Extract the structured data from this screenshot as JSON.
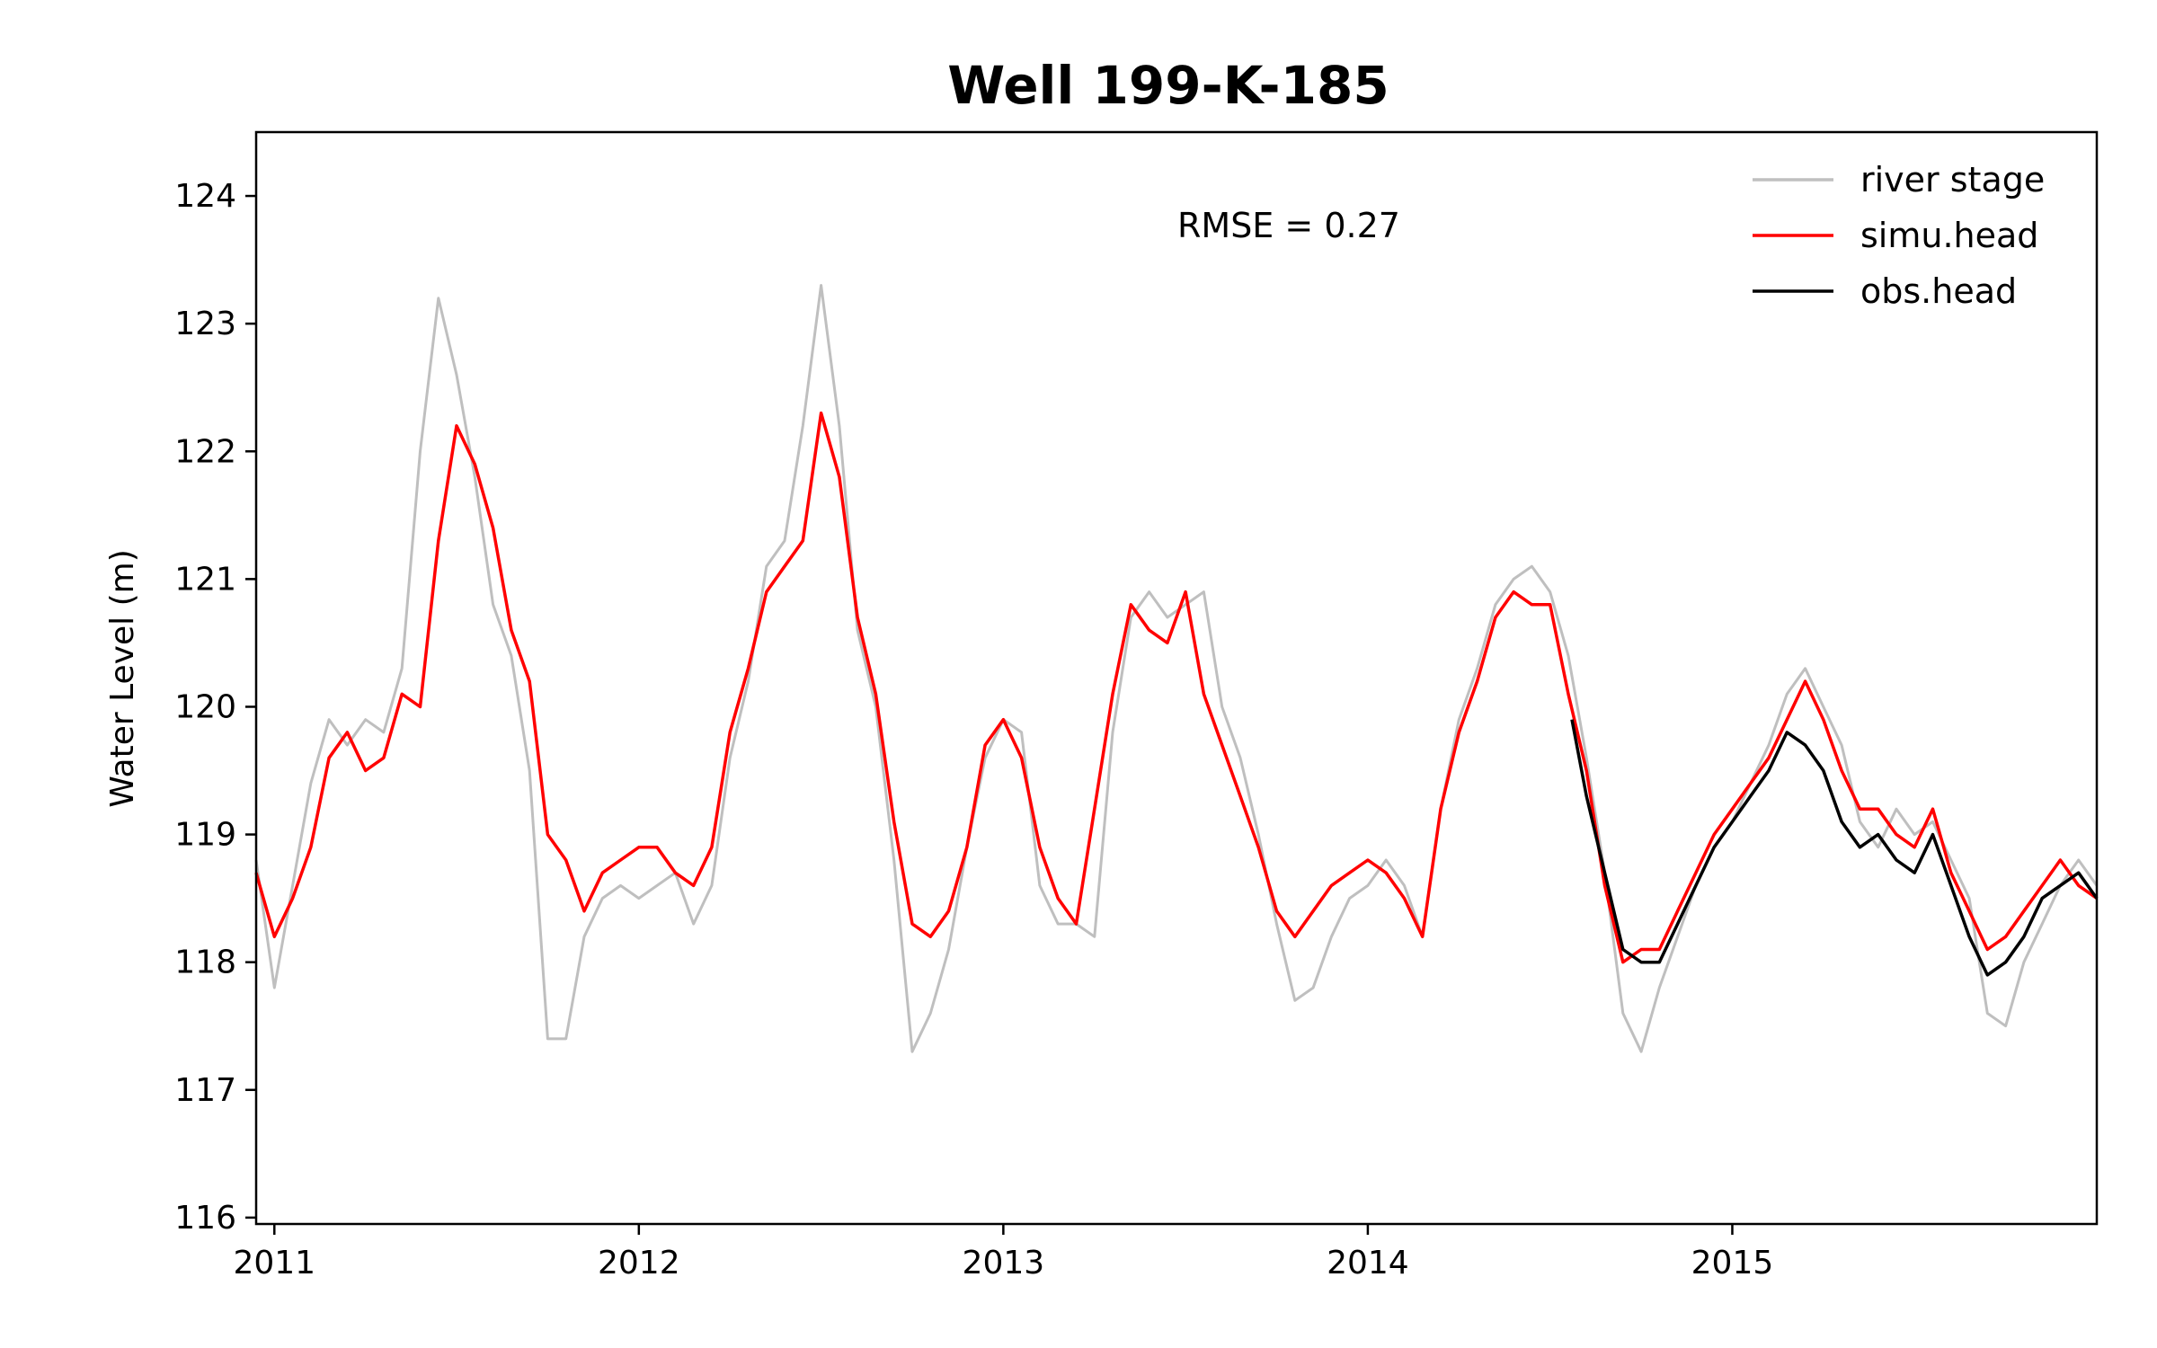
{
  "chart_data": {
    "type": "line",
    "title": "Well 199-K-185",
    "xlabel": "",
    "ylabel": "Water Level (m)",
    "annotation": "RMSE = 0.27",
    "xlim": [
      2010.95,
      2016.0
    ],
    "ylim": [
      115.95,
      124.5
    ],
    "x_ticks": [
      {
        "value": 2011,
        "label": "2011"
      },
      {
        "value": 2012,
        "label": "2012"
      },
      {
        "value": 2013,
        "label": "2013"
      },
      {
        "value": 2014,
        "label": "2014"
      },
      {
        "value": 2015,
        "label": "2015"
      }
    ],
    "y_ticks": [
      {
        "value": 116,
        "label": "116"
      },
      {
        "value": 117,
        "label": "117"
      },
      {
        "value": 118,
        "label": "118"
      },
      {
        "value": 119,
        "label": "119"
      },
      {
        "value": 120,
        "label": "120"
      },
      {
        "value": 121,
        "label": "121"
      },
      {
        "value": 122,
        "label": "122"
      },
      {
        "value": 123,
        "label": "123"
      },
      {
        "value": 124,
        "label": "124"
      }
    ],
    "legend_position": "top-right",
    "grid": false,
    "series": [
      {
        "name": "river stage",
        "color": "#bfbfbf",
        "x": [
          2010.95,
          2011.0,
          2011.05,
          2011.1,
          2011.15,
          2011.2,
          2011.25,
          2011.3,
          2011.35,
          2011.4,
          2011.45,
          2011.5,
          2011.55,
          2011.6,
          2011.65,
          2011.7,
          2011.75,
          2011.8,
          2011.85,
          2011.9,
          2011.95,
          2012.0,
          2012.05,
          2012.1,
          2012.15,
          2012.2,
          2012.25,
          2012.3,
          2012.35,
          2012.4,
          2012.45,
          2012.5,
          2012.55,
          2012.6,
          2012.65,
          2012.7,
          2012.75,
          2012.8,
          2012.85,
          2012.9,
          2012.95,
          2013.0,
          2013.05,
          2013.1,
          2013.15,
          2013.2,
          2013.25,
          2013.3,
          2013.35,
          2013.4,
          2013.45,
          2013.5,
          2013.55,
          2013.6,
          2013.65,
          2013.7,
          2013.75,
          2013.8,
          2013.85,
          2013.9,
          2013.95,
          2014.0,
          2014.05,
          2014.1,
          2014.15,
          2014.2,
          2014.25,
          2014.3,
          2014.35,
          2014.4,
          2014.45,
          2014.5,
          2014.55,
          2014.6,
          2014.65,
          2014.7,
          2014.75,
          2014.8,
          2014.85,
          2014.9,
          2014.95,
          2015.0,
          2015.05,
          2015.1,
          2015.15,
          2015.2,
          2015.25,
          2015.3,
          2015.35,
          2015.4,
          2015.45,
          2015.5,
          2015.55,
          2015.6,
          2015.65,
          2015.7,
          2015.75,
          2015.8,
          2015.85,
          2015.9,
          2015.95,
          2016.0
        ],
        "values": [
          118.8,
          117.8,
          118.6,
          119.4,
          119.9,
          119.7,
          119.9,
          119.8,
          120.3,
          122.0,
          123.2,
          122.6,
          121.8,
          120.8,
          120.4,
          119.5,
          117.4,
          117.4,
          118.2,
          118.5,
          118.6,
          118.5,
          118.6,
          118.7,
          118.3,
          118.6,
          119.6,
          120.2,
          121.1,
          121.3,
          122.2,
          123.3,
          122.2,
          120.6,
          120.0,
          118.8,
          117.3,
          117.6,
          118.1,
          118.9,
          119.6,
          119.9,
          119.8,
          118.6,
          118.3,
          118.3,
          118.2,
          119.8,
          120.7,
          120.9,
          120.7,
          120.8,
          120.9,
          120.0,
          119.6,
          119.0,
          118.3,
          117.7,
          117.8,
          118.2,
          118.5,
          118.6,
          118.8,
          118.6,
          118.2,
          119.2,
          119.9,
          120.3,
          120.8,
          121.0,
          121.1,
          120.9,
          120.4,
          119.6,
          118.7,
          117.6,
          117.3,
          117.8,
          118.2,
          118.6,
          118.9,
          119.1,
          119.4,
          119.7,
          120.1,
          120.3,
          120.0,
          119.7,
          119.1,
          118.9,
          119.2,
          119.0,
          119.1,
          118.8,
          118.5,
          117.6,
          117.5,
          118.0,
          118.3,
          118.6,
          118.8,
          118.6
        ]
      },
      {
        "name": "simu.head",
        "color": "#ff0000",
        "x": [
          2010.95,
          2011.0,
          2011.05,
          2011.1,
          2011.15,
          2011.2,
          2011.25,
          2011.3,
          2011.35,
          2011.4,
          2011.45,
          2011.5,
          2011.55,
          2011.6,
          2011.65,
          2011.7,
          2011.75,
          2011.8,
          2011.85,
          2011.9,
          2011.95,
          2012.0,
          2012.05,
          2012.1,
          2012.15,
          2012.2,
          2012.25,
          2012.3,
          2012.35,
          2012.4,
          2012.45,
          2012.5,
          2012.55,
          2012.6,
          2012.65,
          2012.7,
          2012.75,
          2012.8,
          2012.85,
          2012.9,
          2012.95,
          2013.0,
          2013.05,
          2013.1,
          2013.15,
          2013.2,
          2013.25,
          2013.3,
          2013.35,
          2013.4,
          2013.45,
          2013.5,
          2013.55,
          2013.6,
          2013.65,
          2013.7,
          2013.75,
          2013.8,
          2013.85,
          2013.9,
          2013.95,
          2014.0,
          2014.05,
          2014.1,
          2014.15,
          2014.2,
          2014.25,
          2014.3,
          2014.35,
          2014.4,
          2014.45,
          2014.5,
          2014.55,
          2014.6,
          2014.65,
          2014.7,
          2014.75,
          2014.8,
          2014.85,
          2014.9,
          2014.95,
          2015.0,
          2015.05,
          2015.1,
          2015.15,
          2015.2,
          2015.25,
          2015.3,
          2015.35,
          2015.4,
          2015.45,
          2015.5,
          2015.55,
          2015.6,
          2015.65,
          2015.7,
          2015.75,
          2015.8,
          2015.85,
          2015.9,
          2015.95,
          2016.0
        ],
        "values": [
          118.7,
          118.2,
          118.5,
          118.9,
          119.6,
          119.8,
          119.5,
          119.6,
          120.1,
          120.0,
          121.3,
          122.2,
          121.9,
          121.4,
          120.6,
          120.2,
          119.0,
          118.8,
          118.4,
          118.7,
          118.8,
          118.9,
          118.9,
          118.7,
          118.6,
          118.9,
          119.8,
          120.3,
          120.9,
          121.1,
          121.3,
          122.3,
          121.8,
          120.7,
          120.1,
          119.1,
          118.3,
          118.2,
          118.4,
          118.9,
          119.7,
          119.9,
          119.6,
          118.9,
          118.5,
          118.3,
          119.2,
          120.1,
          120.8,
          120.6,
          120.5,
          120.9,
          120.1,
          119.7,
          119.3,
          118.9,
          118.4,
          118.2,
          118.4,
          118.6,
          118.7,
          118.8,
          118.7,
          118.5,
          118.2,
          119.2,
          119.8,
          120.2,
          120.7,
          120.9,
          120.8,
          120.8,
          120.1,
          119.5,
          118.6,
          118.0,
          118.1,
          118.1,
          118.4,
          118.7,
          119.0,
          119.2,
          119.4,
          119.6,
          119.9,
          120.2,
          119.9,
          119.5,
          119.2,
          119.2,
          119.0,
          118.9,
          119.2,
          118.7,
          118.4,
          118.1,
          118.2,
          118.4,
          118.6,
          118.8,
          118.6,
          118.5
        ]
      },
      {
        "name": "obs.head",
        "color": "#000000",
        "x": [
          2014.56,
          2014.6,
          2014.65,
          2014.7,
          2014.75,
          2014.8,
          2014.85,
          2014.9,
          2014.95,
          2015.0,
          2015.05,
          2015.1,
          2015.15,
          2015.2,
          2015.25,
          2015.3,
          2015.35,
          2015.4,
          2015.45,
          2015.5,
          2015.55,
          2015.6,
          2015.65,
          2015.7,
          2015.75,
          2015.8,
          2015.85,
          2015.9,
          2015.95,
          2016.0
        ],
        "values": [
          119.9,
          119.3,
          118.7,
          118.1,
          118.0,
          118.0,
          118.3,
          118.6,
          118.9,
          119.1,
          119.3,
          119.5,
          119.8,
          119.7,
          119.5,
          119.1,
          118.9,
          119.0,
          118.8,
          118.7,
          119.0,
          118.6,
          118.2,
          117.9,
          118.0,
          118.2,
          118.5,
          118.6,
          118.7,
          118.5
        ]
      }
    ]
  }
}
